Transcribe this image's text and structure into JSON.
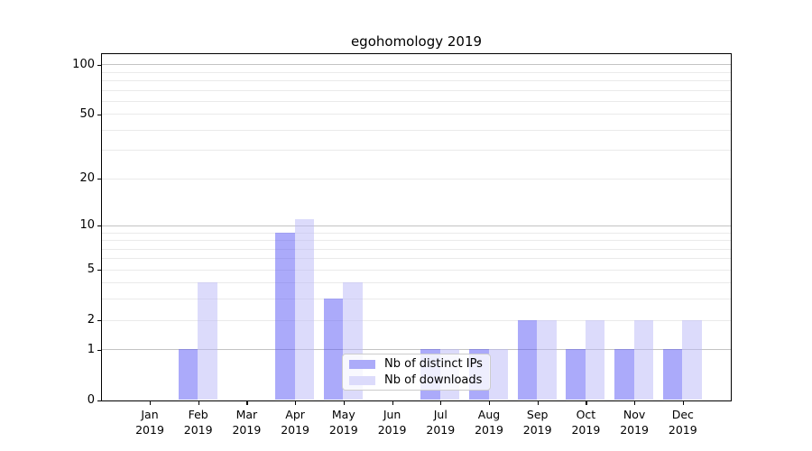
{
  "chart_data": {
    "type": "bar",
    "title": "egohomology 2019",
    "x_year": "2019",
    "categories": [
      "Jan",
      "Feb",
      "Mar",
      "Apr",
      "May",
      "Jun",
      "Jul",
      "Aug",
      "Sep",
      "Oct",
      "Nov",
      "Dec"
    ],
    "series": [
      {
        "name": "Nb of distinct IPs",
        "values": [
          0,
          1,
          0,
          9,
          3,
          0,
          1,
          1,
          2,
          1,
          1,
          1
        ],
        "fill": "rgba(88,85,245,0.5)",
        "legend_color": "#acabf9"
      },
      {
        "name": "Nb of downloads",
        "values": [
          0,
          4,
          0,
          11,
          4,
          0,
          1,
          1,
          2,
          2,
          2,
          2
        ],
        "fill": "rgba(185,183,247,0.5)",
        "legend_color": "#dcdbfb"
      }
    ],
    "y_axis": {
      "scale": "log1p",
      "tick_values": [
        0,
        1,
        2,
        5,
        10,
        20,
        50,
        100
      ],
      "tick_labels": [
        "0",
        "1",
        "2",
        "5",
        "10",
        "20",
        "50",
        "100"
      ],
      "major_gridline_values": [
        1,
        10,
        100
      ],
      "minor_gridline_values": [
        2,
        3,
        4,
        5,
        6,
        7,
        8,
        9,
        20,
        30,
        40,
        50,
        60,
        70,
        80,
        90
      ],
      "max": 100
    },
    "legend": {
      "position": "lower center",
      "items": [
        "Nb of distinct IPs",
        "Nb of downloads"
      ]
    },
    "colors": {
      "major_grid": "#c3c3c3",
      "minor_grid": "#eaeaea",
      "spine": "#000000",
      "text": "#000000"
    }
  }
}
